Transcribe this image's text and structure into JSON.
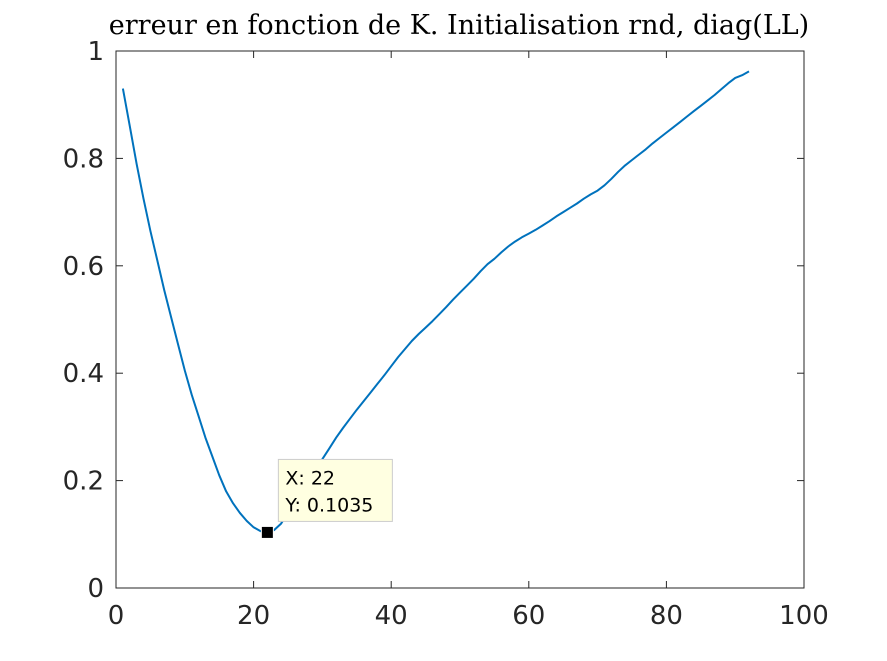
{
  "chart_data": {
    "type": "line",
    "title": "erreur en fonction de K. Initialisation rnd, diag(LL)",
    "xlabel": "",
    "ylabel": "",
    "xlim": [
      0,
      100
    ],
    "ylim": [
      0,
      1
    ],
    "xticks": [
      "0",
      "20",
      "40",
      "60",
      "80",
      "100"
    ],
    "yticks": [
      "0",
      "0.2",
      "0.4",
      "0.6",
      "0.8",
      "1"
    ],
    "grid": false,
    "line_color": "#0072BD",
    "series": [
      {
        "name": "",
        "x": [
          1,
          2,
          3,
          4,
          5,
          6,
          7,
          8,
          9,
          10,
          11,
          12,
          13,
          14,
          15,
          16,
          17,
          18,
          19,
          20,
          21,
          22,
          23,
          24,
          25,
          26,
          27,
          28,
          29,
          30,
          31,
          32,
          33,
          34,
          35,
          36,
          37,
          38,
          39,
          40,
          41,
          42,
          43,
          44,
          45,
          46,
          47,
          48,
          49,
          50,
          51,
          52,
          53,
          54,
          55,
          56,
          57,
          58,
          59,
          60,
          61,
          62,
          63,
          64,
          65,
          66,
          67,
          68,
          69,
          70,
          71,
          72,
          73,
          74,
          75,
          76,
          77,
          78,
          79,
          80,
          81,
          82,
          83,
          84,
          85,
          86,
          87,
          88,
          89,
          90,
          91,
          92
        ],
        "values": [
          0.93,
          0.86,
          0.79,
          0.725,
          0.665,
          0.61,
          0.555,
          0.505,
          0.455,
          0.405,
          0.36,
          0.32,
          0.28,
          0.245,
          0.21,
          0.18,
          0.158,
          0.14,
          0.125,
          0.113,
          0.106,
          0.1035,
          0.108,
          0.12,
          0.14,
          0.16,
          0.18,
          0.2,
          0.22,
          0.24,
          0.26,
          0.28,
          0.298,
          0.315,
          0.332,
          0.348,
          0.364,
          0.38,
          0.396,
          0.413,
          0.43,
          0.445,
          0.46,
          0.473,
          0.485,
          0.497,
          0.51,
          0.523,
          0.537,
          0.55,
          0.563,
          0.576,
          0.59,
          0.603,
          0.613,
          0.625,
          0.636,
          0.645,
          0.653,
          0.66,
          0.667,
          0.675,
          0.683,
          0.692,
          0.7,
          0.708,
          0.716,
          0.725,
          0.733,
          0.74,
          0.75,
          0.762,
          0.775,
          0.787,
          0.797,
          0.807,
          0.817,
          0.828,
          0.838,
          0.848,
          0.858,
          0.868,
          0.878,
          0.888,
          0.898,
          0.908,
          0.918,
          0.929,
          0.94,
          0.95,
          0.955,
          0.962
        ]
      }
    ],
    "datatip": {
      "x_text": "X: 22",
      "y_text": "Y: 0.1035",
      "x": 22,
      "y": 0.1035,
      "box_color": "#FFFFE1",
      "border_color": "#CCCCCC"
    }
  }
}
